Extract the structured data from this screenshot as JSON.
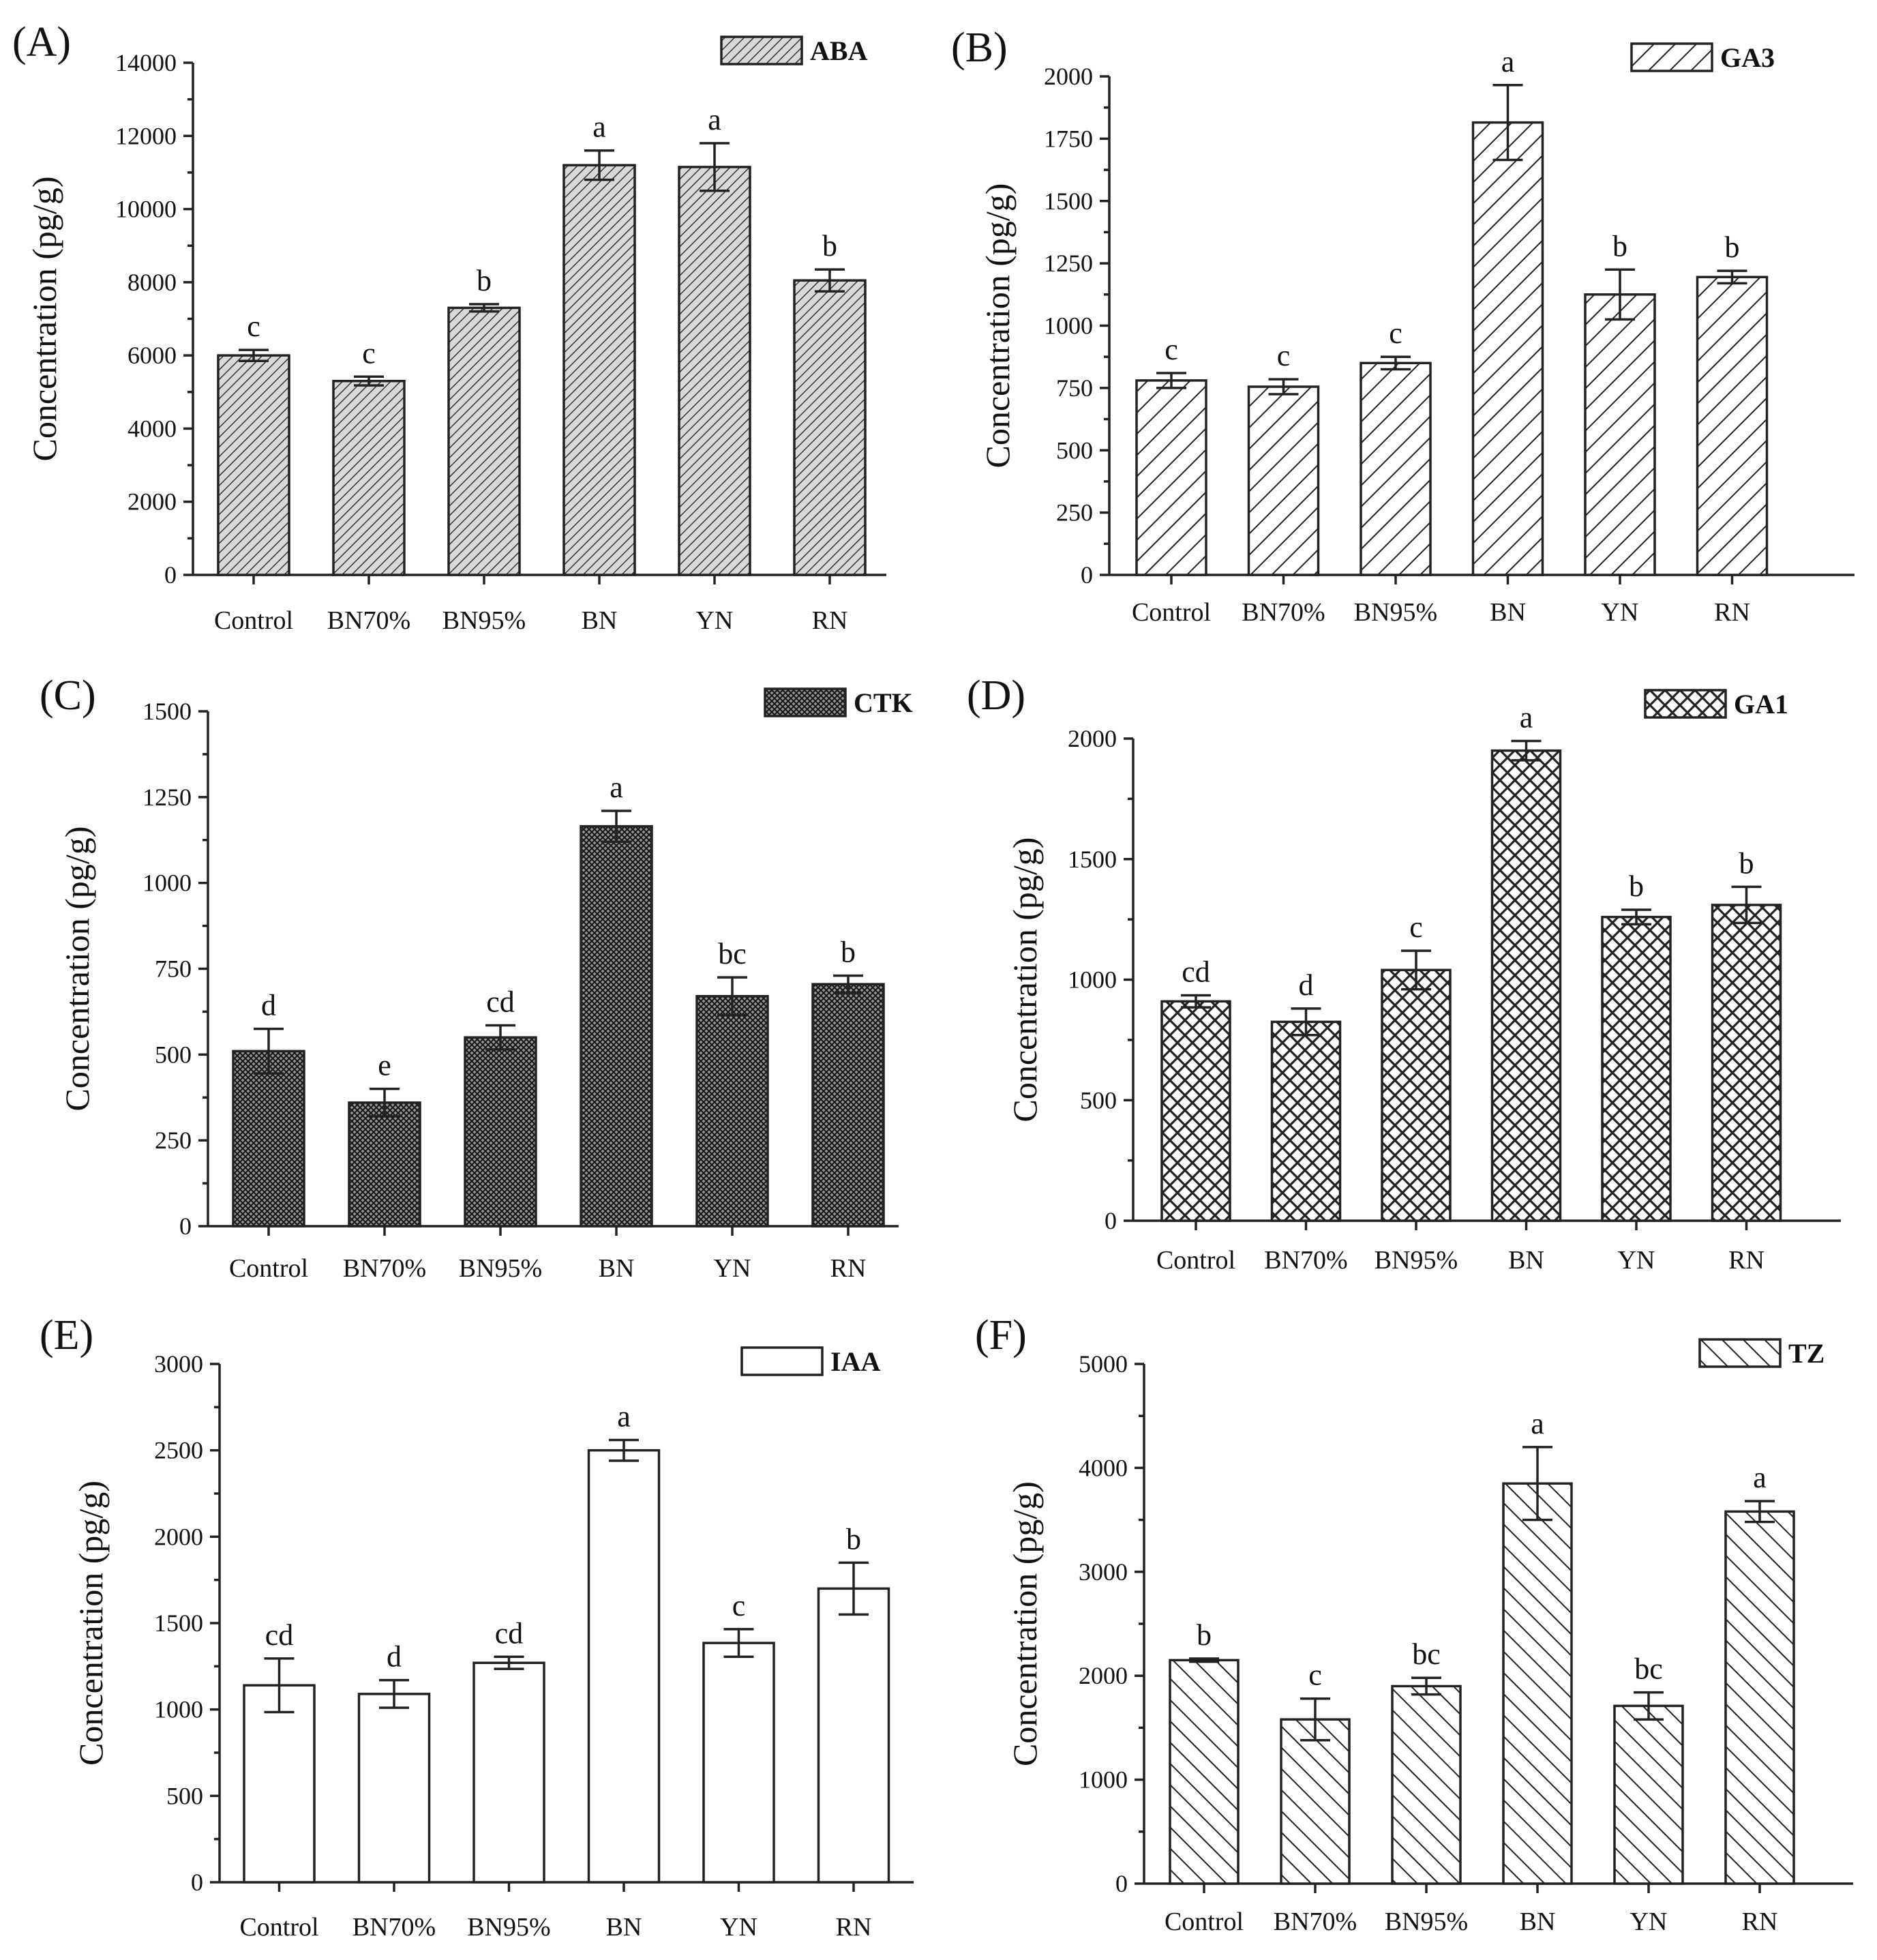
{
  "chart_data": [
    {
      "type": "bar",
      "panel": "(A)",
      "legend": "ABA",
      "pattern": "diag-fine",
      "ylabel": "Concentration (pg/g)",
      "ylim": [
        0,
        14000
      ],
      "yticks": [
        0,
        2000,
        4000,
        6000,
        8000,
        10000,
        12000,
        14000
      ],
      "categories": [
        "Control",
        "BN70%",
        "BN95%",
        "BN",
        "YN",
        "RN"
      ],
      "values": [
        6000,
        5300,
        7300,
        11200,
        11150,
        8050
      ],
      "errors": [
        150,
        120,
        100,
        400,
        650,
        300
      ],
      "significance": [
        "c",
        "c",
        "b",
        "a",
        "a",
        "b"
      ]
    },
    {
      "type": "bar",
      "panel": "(B)",
      "legend": "GA3",
      "pattern": "diag-wide",
      "ylabel": "Concentration (pg/g)",
      "ylim": [
        0,
        2000
      ],
      "yticks": [
        0,
        250,
        500,
        750,
        1000,
        1250,
        1500,
        1750,
        2000
      ],
      "categories": [
        "Control",
        "BN70%",
        "BN95%",
        "BN",
        "YN",
        "RN"
      ],
      "values": [
        780,
        755,
        850,
        1815,
        1125,
        1195
      ],
      "errors": [
        30,
        30,
        25,
        150,
        100,
        25
      ],
      "significance": [
        "c",
        "c",
        "c",
        "a",
        "b",
        "b"
      ]
    },
    {
      "type": "bar",
      "panel": "(C)",
      "legend": "CTK",
      "pattern": "crosshatch-dense",
      "ylabel": "Concentration (pg/g)",
      "ylim": [
        0,
        1500
      ],
      "yticks": [
        0,
        250,
        500,
        750,
        1000,
        1250,
        1500
      ],
      "categories": [
        "Control",
        "BN70%",
        "BN95%",
        "BN",
        "YN",
        "RN"
      ],
      "values": [
        510,
        360,
        550,
        1165,
        670,
        705
      ],
      "errors": [
        65,
        40,
        35,
        45,
        55,
        25
      ],
      "significance": [
        "d",
        "e",
        "cd",
        "a",
        "bc",
        "b"
      ]
    },
    {
      "type": "bar",
      "panel": "(D)",
      "legend": "GA1",
      "pattern": "crosshatch-open",
      "ylabel": "Concentration (pg/g)",
      "ylim": [
        0,
        2000
      ],
      "yticks": [
        0,
        500,
        1000,
        1500,
        2000
      ],
      "categories": [
        "Control",
        "BN70%",
        "BN95%",
        "BN",
        "YN",
        "RN"
      ],
      "values": [
        910,
        825,
        1040,
        1950,
        1260,
        1310
      ],
      "errors": [
        25,
        55,
        80,
        40,
        30,
        75
      ],
      "significance": [
        "cd",
        "d",
        "c",
        "a",
        "b",
        "b"
      ]
    },
    {
      "type": "bar",
      "panel": "(E)",
      "legend": "IAA",
      "pattern": "none",
      "ylabel": "Concentration (pg/g)",
      "ylim": [
        0,
        3000
      ],
      "yticks": [
        0,
        500,
        1000,
        1500,
        2000,
        2500,
        3000
      ],
      "categories": [
        "Control",
        "BN70%",
        "BN95%",
        "BN",
        "YN",
        "RN"
      ],
      "values": [
        1140,
        1090,
        1270,
        2500,
        1385,
        1700
      ],
      "errors": [
        155,
        80,
        35,
        60,
        80,
        150
      ],
      "significance": [
        "cd",
        "d",
        "cd",
        "a",
        "c",
        "b"
      ]
    },
    {
      "type": "bar",
      "panel": "(F)",
      "legend": "TZ",
      "pattern": "backslash",
      "ylabel": "Concentration (pg/g)",
      "ylim": [
        0,
        5000
      ],
      "yticks": [
        0,
        1000,
        2000,
        3000,
        4000,
        5000
      ],
      "categories": [
        "Control",
        "BN70%",
        "BN95%",
        "BN",
        "YN",
        "RN"
      ],
      "values": [
        2150,
        1580,
        1900,
        3850,
        1710,
        3580
      ],
      "errors": [
        15,
        200,
        80,
        350,
        130,
        100
      ],
      "significance": [
        "b",
        "c",
        "bc",
        "a",
        "bc",
        "a"
      ]
    }
  ]
}
